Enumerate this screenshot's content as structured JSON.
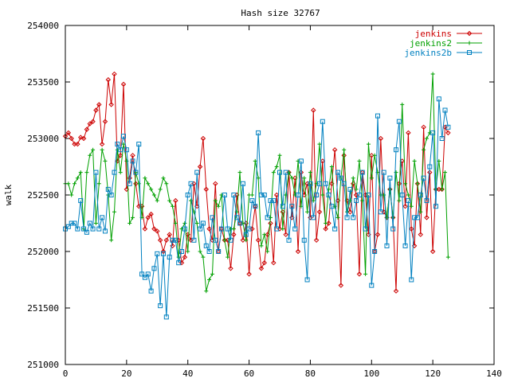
{
  "chart_data": {
    "type": "line",
    "title": "Hash size 32767",
    "xlabel": "",
    "ylabel": "walk",
    "xlim": [
      0,
      140
    ],
    "ylim": [
      251000,
      254000
    ],
    "xticks": [
      0,
      20,
      40,
      60,
      80,
      100,
      120,
      140
    ],
    "yticks": [
      251000,
      251500,
      252000,
      252500,
      253000,
      253500,
      254000
    ],
    "grid": false,
    "legend_position": "top-right",
    "series": [
      {
        "name": "jenkins",
        "color": "#cc0000",
        "marker": "diamond",
        "x": [
          0,
          1,
          2,
          3,
          4,
          5,
          6,
          7,
          8,
          9,
          10,
          11,
          12,
          13,
          14,
          15,
          16,
          17,
          18,
          19,
          20,
          21,
          22,
          23,
          24,
          25,
          26,
          27,
          28,
          29,
          30,
          31,
          32,
          33,
          34,
          35,
          36,
          37,
          38,
          39,
          40,
          41,
          42,
          43,
          44,
          45,
          46,
          47,
          48,
          49,
          50,
          51,
          52,
          53,
          54,
          55,
          56,
          57,
          58,
          59,
          60,
          61,
          62,
          63,
          64,
          65,
          66,
          67,
          68,
          69,
          70,
          71,
          72,
          73,
          74,
          75,
          76,
          77,
          78,
          79,
          80,
          81,
          82,
          83,
          84,
          85,
          86,
          87,
          88,
          89,
          90,
          91,
          92,
          93,
          94,
          95,
          96,
          97,
          98,
          99,
          100,
          101,
          102,
          103,
          104,
          105,
          106,
          107,
          108,
          109,
          110,
          111,
          112,
          113,
          114,
          115,
          116,
          117,
          118,
          119,
          120,
          121,
          122,
          123,
          124,
          125
        ],
        "y": [
          253020,
          253050,
          253000,
          252950,
          252950,
          253010,
          253000,
          253080,
          253130,
          253150,
          253250,
          253300,
          252950,
          253150,
          253520,
          253300,
          253570,
          252800,
          252850,
          253480,
          252550,
          252650,
          252850,
          252600,
          252400,
          252400,
          252200,
          252300,
          252330,
          252200,
          252180,
          252100,
          252000,
          252100,
          252150,
          252050,
          252450,
          252100,
          251900,
          251950,
          252150,
          252100,
          252600,
          252400,
          252750,
          253000,
          252550,
          252200,
          252100,
          252600,
          252000,
          252200,
          252100,
          252100,
          251850,
          252150,
          252500,
          252250,
          252100,
          252250,
          251800,
          252200,
          252400,
          252100,
          251850,
          251900,
          252150,
          252250,
          251900,
          252500,
          252200,
          252350,
          252150,
          252700,
          252300,
          252650,
          252000,
          252700,
          252500,
          252600,
          252300,
          253250,
          252100,
          252350,
          252800,
          252200,
          252250,
          252600,
          252900,
          252450,
          251700,
          252850,
          252450,
          252350,
          252600,
          252500,
          251800,
          252700,
          252500,
          252150,
          252850,
          252000,
          252150,
          253000,
          252350,
          252300,
          252550,
          252300,
          251650,
          252600,
          252800,
          252400,
          253050,
          252200,
          252050,
          252600,
          252150,
          253100,
          252300,
          252700,
          252000,
          252550,
          252550,
          252550,
          253100,
          253050
        ]
      },
      {
        "name": "jenkins2",
        "color": "#00a000",
        "marker": "plus",
        "x": [
          0,
          1,
          2,
          3,
          4,
          5,
          6,
          7,
          8,
          9,
          10,
          11,
          12,
          13,
          14,
          15,
          16,
          17,
          18,
          19,
          20,
          21,
          22,
          23,
          24,
          25,
          26,
          27,
          28,
          29,
          30,
          31,
          32,
          33,
          34,
          35,
          36,
          37,
          38,
          39,
          40,
          41,
          42,
          43,
          44,
          45,
          46,
          47,
          48,
          49,
          50,
          51,
          52,
          53,
          54,
          55,
          56,
          57,
          58,
          59,
          60,
          61,
          62,
          63,
          64,
          65,
          66,
          67,
          68,
          69,
          70,
          71,
          72,
          73,
          74,
          75,
          76,
          77,
          78,
          79,
          80,
          81,
          82,
          83,
          84,
          85,
          86,
          87,
          88,
          89,
          90,
          91,
          92,
          93,
          94,
          95,
          96,
          97,
          98,
          99,
          100,
          101,
          102,
          103,
          104,
          105,
          106,
          107,
          108,
          109,
          110,
          111,
          112,
          113,
          114,
          115,
          116,
          117,
          118,
          119,
          120,
          121,
          122,
          123,
          124,
          125
        ],
        "y": [
          252600,
          252600,
          252500,
          252600,
          252650,
          252700,
          252200,
          252700,
          252850,
          252900,
          252250,
          252600,
          252900,
          252800,
          252500,
          252100,
          252350,
          252900,
          252700,
          252950,
          252800,
          252250,
          252300,
          252700,
          252600,
          252300,
          252650,
          252600,
          252550,
          252500,
          252450,
          252550,
          252650,
          252600,
          252450,
          252400,
          252250,
          251950,
          252200,
          252250,
          252000,
          252450,
          252350,
          252250,
          252000,
          251950,
          251650,
          251750,
          251800,
          252450,
          252400,
          252500,
          252100,
          251950,
          252200,
          252200,
          252350,
          252700,
          252250,
          252100,
          252500,
          252500,
          252800,
          252650,
          252050,
          252150,
          252000,
          252300,
          252700,
          252750,
          252850,
          252200,
          252500,
          252700,
          252650,
          252500,
          252800,
          252400,
          252650,
          252350,
          252700,
          252450,
          252600,
          252950,
          252500,
          252250,
          252550,
          252750,
          252400,
          252300,
          252650,
          252900,
          252350,
          252450,
          252650,
          252550,
          252800,
          252450,
          251800,
          252950,
          252650,
          252850,
          252700,
          252500,
          252500,
          252300,
          252550,
          252300,
          252700,
          252450,
          253300,
          252600,
          252500,
          252400,
          252800,
          252600,
          252350,
          252900,
          253000,
          253050,
          253570,
          252550,
          252800,
          252550,
          252700,
          251950
        ]
      },
      {
        "name": "jenkins2b",
        "color": "#0080c0",
        "marker": "square",
        "x": [
          0,
          1,
          2,
          3,
          4,
          5,
          6,
          7,
          8,
          9,
          10,
          11,
          12,
          13,
          14,
          15,
          16,
          17,
          18,
          19,
          20,
          21,
          22,
          23,
          24,
          25,
          26,
          27,
          28,
          29,
          30,
          31,
          32,
          33,
          34,
          35,
          36,
          37,
          38,
          39,
          40,
          41,
          42,
          43,
          44,
          45,
          46,
          47,
          48,
          49,
          50,
          51,
          52,
          53,
          54,
          55,
          56,
          57,
          58,
          59,
          60,
          61,
          62,
          63,
          64,
          65,
          66,
          67,
          68,
          69,
          70,
          71,
          72,
          73,
          74,
          75,
          76,
          77,
          78,
          79,
          80,
          81,
          82,
          83,
          84,
          85,
          86,
          87,
          88,
          89,
          90,
          91,
          92,
          93,
          94,
          95,
          96,
          97,
          98,
          99,
          100,
          101,
          102,
          103,
          104,
          105,
          106,
          107,
          108,
          109,
          110,
          111,
          112,
          113,
          114,
          115,
          116,
          117,
          118,
          119,
          120,
          121,
          122,
          123,
          124,
          125
        ],
        "y": [
          252200,
          252220,
          252250,
          252250,
          252200,
          252450,
          252200,
          252170,
          252250,
          252200,
          252700,
          252200,
          252300,
          252180,
          252550,
          252500,
          252700,
          252950,
          252900,
          253020,
          252900,
          252600,
          252800,
          252700,
          252950,
          251800,
          251770,
          251800,
          251650,
          251850,
          251980,
          251520,
          251980,
          251420,
          251950,
          252100,
          252100,
          251900,
          252000,
          252200,
          252500,
          252600,
          252100,
          252700,
          252200,
          252250,
          252050,
          252000,
          252300,
          252100,
          252000,
          252200,
          252500,
          252200,
          252100,
          252500,
          252300,
          252250,
          252600,
          252150,
          252200,
          252450,
          252400,
          253050,
          252500,
          252500,
          252300,
          252450,
          252450,
          252200,
          252700,
          252400,
          252700,
          252100,
          252400,
          252200,
          252500,
          252800,
          252100,
          251750,
          252600,
          252300,
          252500,
          252600,
          253150,
          252600,
          252500,
          252400,
          252200,
          252700,
          252650,
          252600,
          252300,
          252550,
          252300,
          252450,
          252500,
          252700,
          252200,
          252500,
          251700,
          252000,
          253200,
          252350,
          252700,
          252050,
          252650,
          252200,
          252900,
          253150,
          252500,
          252050,
          252450,
          251750,
          252300,
          252300,
          252500,
          252650,
          252450,
          252750,
          253050,
          252400,
          253350,
          253000,
          253250,
          253100
        ]
      }
    ]
  }
}
